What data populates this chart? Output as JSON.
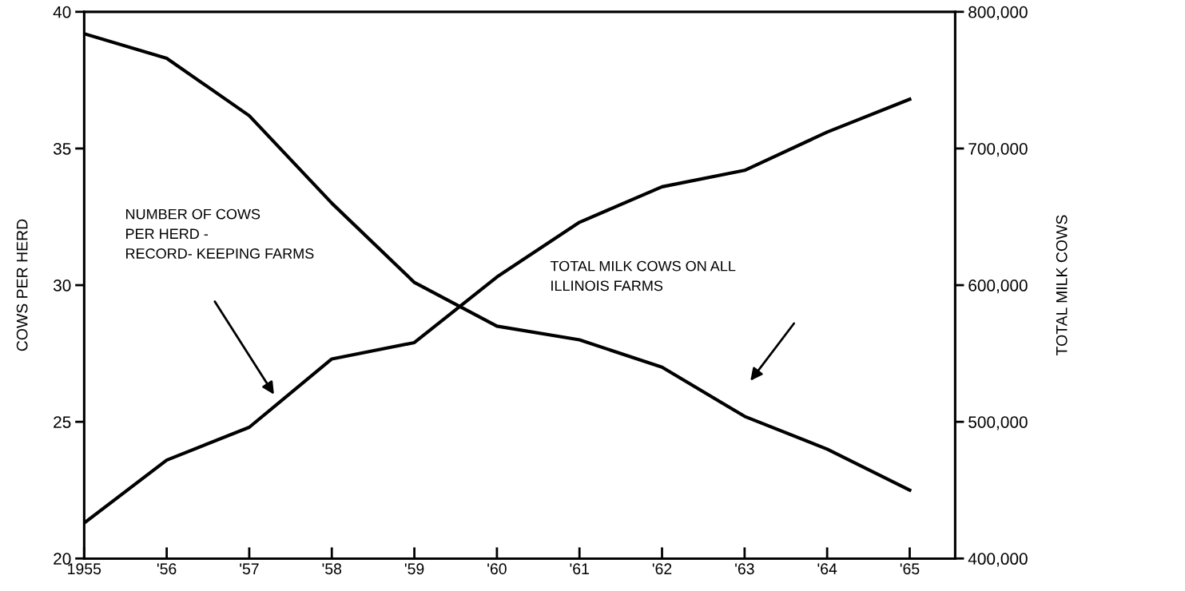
{
  "chart_data": {
    "type": "line",
    "ylabel": "COWS PER HERD",
    "y2label": "TOTAL MILK COWS",
    "x": [
      1955,
      1956,
      1957,
      1958,
      1959,
      1960,
      1961,
      1962,
      1963,
      1964,
      1965
    ],
    "series": [
      {
        "color": "#000000",
        "values": [
          21.3,
          23.6,
          24.8,
          27.3,
          27.9,
          30.3,
          32.3,
          33.6,
          34.2,
          35.6,
          36.8
        ]
      },
      {
        "color": "#000000",
        "axis": "y2",
        "values": [
          784000,
          766000,
          724000,
          660000,
          602000,
          570000,
          560000,
          540000,
          504000,
          480000,
          450000
        ]
      }
    ],
    "xlim": [
      1955,
      1965.55
    ],
    "xticks": [
      {
        "value": 1955,
        "label": "1955"
      },
      {
        "value": 1956,
        "label": "'56"
      },
      {
        "value": 1957,
        "label": "'57"
      },
      {
        "value": 1958,
        "label": "'58"
      },
      {
        "value": 1959,
        "label": "'59"
      },
      {
        "value": 1960,
        "label": "'60"
      },
      {
        "value": 1961,
        "label": "'61"
      },
      {
        "value": 1962,
        "label": "'62"
      },
      {
        "value": 1963,
        "label": "'63"
      },
      {
        "value": 1964,
        "label": "'64"
      },
      {
        "value": 1965,
        "label": "'65"
      }
    ],
    "ylim": [
      20,
      40
    ],
    "yticks": [
      20,
      25,
      30,
      35,
      40
    ],
    "y2lim": [
      400000,
      800000
    ],
    "y2ticks": [
      {
        "value": 400000,
        "label": "400,000"
      },
      {
        "value": 500000,
        "label": "500,000"
      },
      {
        "value": 600000,
        "label": "600,000"
      },
      {
        "value": 700000,
        "label": "700,000"
      },
      {
        "value": 800000,
        "label": "800,000"
      }
    ],
    "annotations": [
      "NUMBER OF COWS\nPER HERD -\nRECORD- KEEPING FARMS",
      "TOTAL MILK COWS ON ALL\nILLINOIS FARMS"
    ],
    "grid": false,
    "legend": false,
    "marker": "none",
    "line_style": "solid"
  }
}
